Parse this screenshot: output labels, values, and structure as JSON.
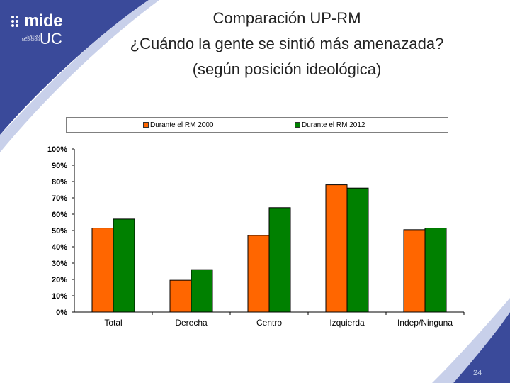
{
  "logo": {
    "name": "mide",
    "sub": "UC",
    "caption": "CENTRO MEDICION"
  },
  "title": {
    "line1": "Comparación UP-RM",
    "line2": "¿Cuándo la gente se sintió más amenazada?",
    "line3": "(según posición ideológica)"
  },
  "page_number": "24",
  "colors": {
    "series1": "#ff6600",
    "series2": "#008000",
    "brand": "#2e3d8c"
  },
  "chart_data": {
    "type": "bar",
    "categories": [
      "Total",
      "Derecha",
      "Centro",
      "Izquierda",
      "Indep/Ninguna"
    ],
    "series": [
      {
        "name": "Durante el RM 2000",
        "values": [
          51.5,
          19.5,
          47,
          78,
          50.5
        ]
      },
      {
        "name": "Durante el RM 2012",
        "values": [
          57,
          26,
          64,
          76,
          51.5
        ]
      }
    ],
    "y_ticks": [
      "0%",
      "10%",
      "20%",
      "30%",
      "40%",
      "50%",
      "60%",
      "70%",
      "80%",
      "90%",
      "100%"
    ],
    "ylim": [
      0,
      100
    ],
    "legend": "top",
    "grid": false
  }
}
